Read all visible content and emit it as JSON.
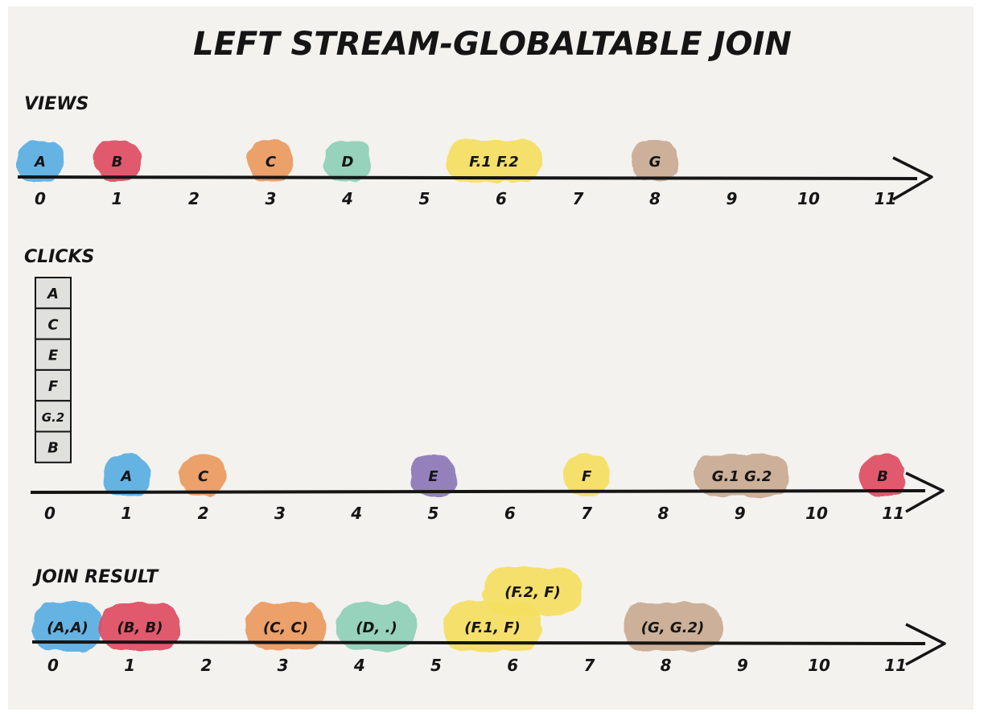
{
  "title": "LEFT STREAM-GLOBALTABLE JOIN",
  "colors": {
    "paper": "#f3f2ef",
    "ink": "#151515",
    "blue": "#5aaee3",
    "red": "#df4d62",
    "orange": "#ec9a5e",
    "teal": "#8fd0b8",
    "yellow": "#f6df61",
    "taupe": "#c9ab92",
    "purple": "#8d78b8",
    "table_cell": "#e0e0dd"
  },
  "timelines": [
    {
      "label": "VIEWS",
      "ticks": [
        "0",
        "1",
        "2",
        "3",
        "4",
        "5",
        "6",
        "7",
        "8",
        "9",
        "10",
        "11"
      ],
      "events": [
        {
          "label": "A",
          "t": 0,
          "color": "blue"
        },
        {
          "label": "B",
          "t": 1,
          "color": "red"
        },
        {
          "label": "C",
          "t": 3,
          "color": "orange"
        },
        {
          "label": "D",
          "t": 4,
          "color": "teal"
        },
        {
          "label": "F.1  F.2",
          "t": 6,
          "color": "yellow"
        },
        {
          "label": "G",
          "t": 8,
          "color": "taupe"
        }
      ]
    },
    {
      "label": "CLICKS",
      "ticks": [
        "0",
        "1",
        "2",
        "3",
        "4",
        "5",
        "6",
        "7",
        "8",
        "9",
        "10",
        "11"
      ],
      "table": [
        "A",
        "C",
        "E",
        "F",
        "G.2",
        "B"
      ],
      "events": [
        {
          "label": "A",
          "t": 1,
          "color": "blue"
        },
        {
          "label": "C",
          "t": 2,
          "color": "orange"
        },
        {
          "label": "E",
          "t": 5,
          "color": "purple"
        },
        {
          "label": "F",
          "t": 7,
          "color": "yellow"
        },
        {
          "label": "G.1  G.2",
          "t": 9,
          "color": "taupe"
        },
        {
          "label": "B",
          "t": 11,
          "color": "red"
        }
      ]
    },
    {
      "label": "JOIN RESULT",
      "ticks": [
        "0",
        "1",
        "2",
        "3",
        "4",
        "5",
        "6",
        "7",
        "8",
        "9",
        "10",
        "11"
      ],
      "events": [
        {
          "label": "(A,A)",
          "t": 0,
          "color": "blue"
        },
        {
          "label": "(B, B)",
          "t": 1,
          "color": "red"
        },
        {
          "label": "(C, C)",
          "t": 3,
          "color": "orange"
        },
        {
          "label": "(D, .)",
          "t": 4,
          "color": "teal"
        },
        {
          "label": "(F.1, F)",
          "t": 6,
          "color": "yellow"
        },
        {
          "label": "(F.2, F)",
          "t": 6,
          "color": "yellow"
        },
        {
          "label": "(G, G.2)",
          "t": 8,
          "color": "taupe"
        }
      ]
    }
  ]
}
